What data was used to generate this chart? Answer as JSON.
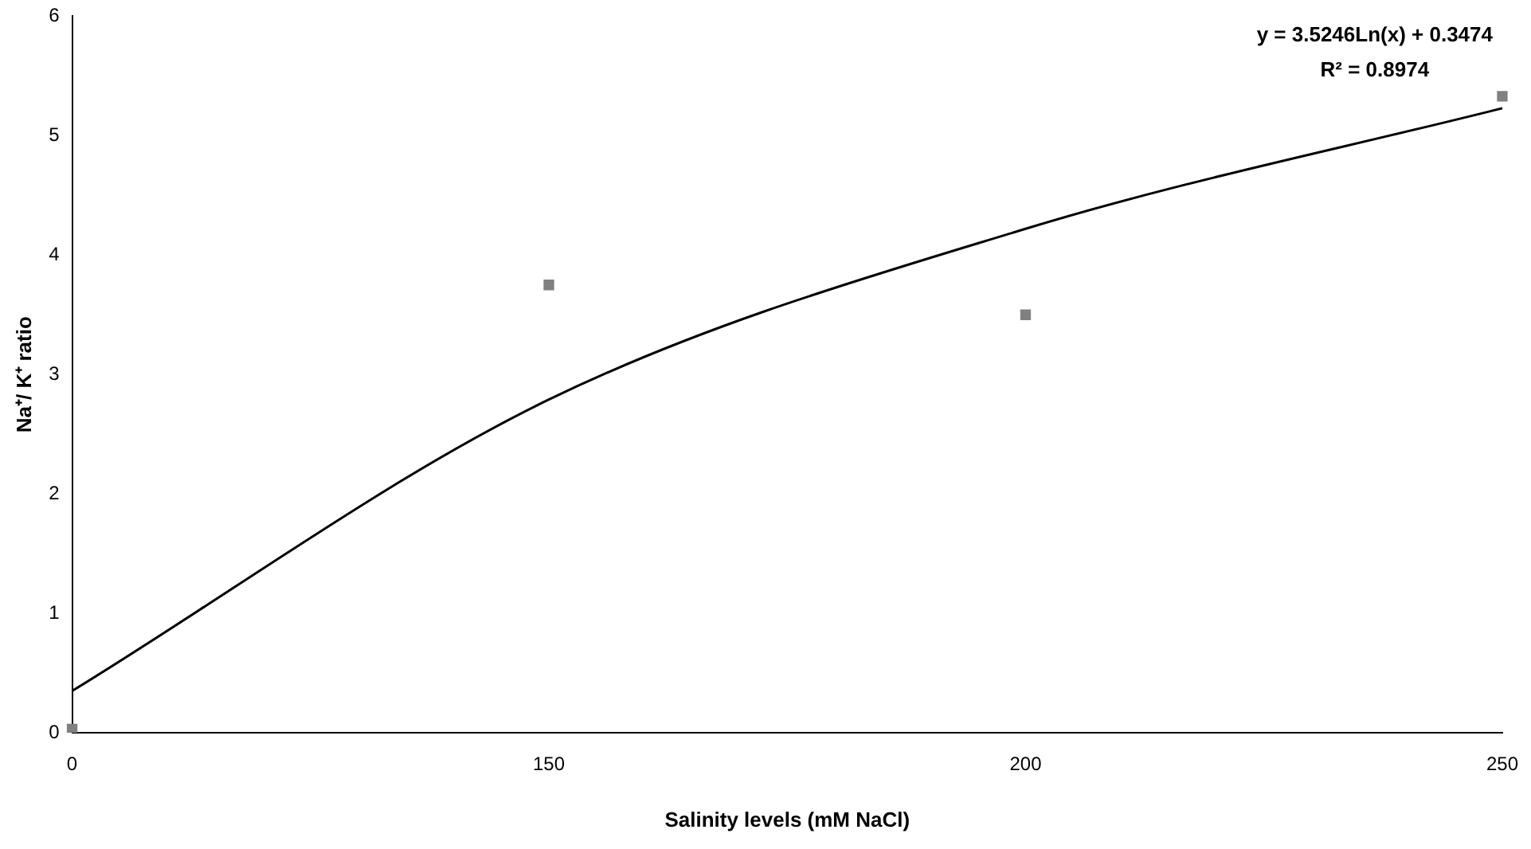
{
  "chart_data": {
    "type": "scatter",
    "xlabel": "Salinity levels (mM NaCl)",
    "ylabel": "Na⁺/ K⁺ ratio",
    "categories": [
      "0",
      "150",
      "200",
      "250"
    ],
    "series": [
      {
        "color": "#808080",
        "marker": "square",
        "values": [
          0.03,
          3.75,
          3.5,
          5.33
        ]
      },
      {
        "type": "line",
        "color": "#000000",
        "marker": "none",
        "values": [
          0.35,
          2.79,
          4.22,
          5.23
        ]
      }
    ],
    "ylim": [
      0,
      6
    ],
    "yticks": [
      0,
      1,
      2,
      3,
      4,
      5,
      6
    ],
    "grid": false,
    "legend": false,
    "annotations": [
      "y = 3.5246Ln(x) + 0.3474",
      "R² = 0.8974"
    ]
  }
}
